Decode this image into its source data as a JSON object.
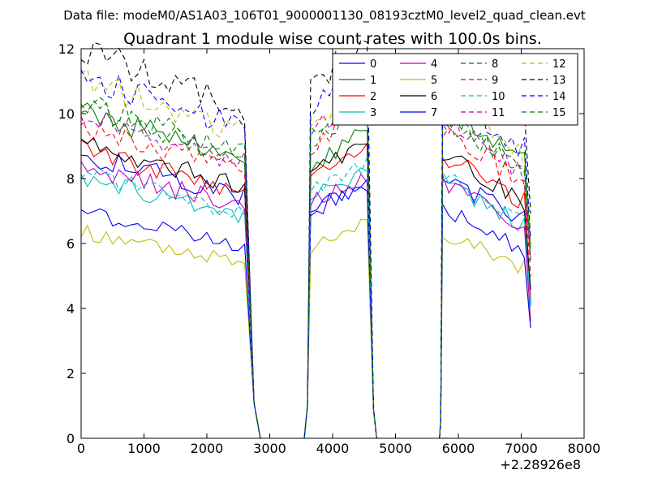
{
  "suptitle": "Data file: modeM0/AS1A03_106T01_9000001130_08193cztM0_level2_quad_clean.evt",
  "chart_data": {
    "type": "line",
    "title": "Quadrant 1 module wise count rates with 100.0s bins.",
    "xlabel": "",
    "ylabel": "",
    "x_offset_label": "+2.28926e8",
    "xlim": [
      0,
      8000
    ],
    "ylim": [
      0,
      12
    ],
    "x_ticks": [
      0,
      1000,
      2000,
      3000,
      4000,
      5000,
      6000,
      7000,
      8000
    ],
    "x_tick_labels": [
      "0",
      "1000",
      "2000",
      "3000",
      "4000",
      "5000",
      "6000",
      "7000",
      "8000"
    ],
    "y_ticks": [
      0,
      2,
      4,
      6,
      8,
      10,
      12
    ],
    "y_tick_labels": [
      "0",
      "2",
      "4",
      "6",
      "8",
      "10",
      "12"
    ],
    "grid": false,
    "legend_position": "top-right",
    "legend_columns": 4,
    "segments_x": [
      [
        0,
        2650,
        100
      ],
      [
        3650,
        4550,
        100
      ],
      [
        5750,
        7150,
        100
      ]
    ],
    "series": [
      {
        "name": "0",
        "color": "#0000ff",
        "dash": "solid",
        "levels": [
          7.3,
          7.0,
          7.0
        ]
      },
      {
        "name": "1",
        "color": "#008000",
        "dash": "solid",
        "levels": [
          8.4,
          8.5,
          8.9
        ]
      },
      {
        "name": "2",
        "color": "#ff0000",
        "dash": "solid",
        "levels": [
          7.4,
          8.2,
          7.6
        ]
      },
      {
        "name": "3",
        "color": "#00bfbf",
        "dash": "solid",
        "levels": [
          6.7,
          7.4,
          6.9
        ]
      },
      {
        "name": "4",
        "color": "#bf00bf",
        "dash": "solid",
        "levels": [
          7.0,
          7.2,
          6.8
        ]
      },
      {
        "name": "5",
        "color": "#bfbf00",
        "dash": "solid",
        "levels": [
          5.3,
          5.9,
          5.5
        ]
      },
      {
        "name": "6",
        "color": "#000000",
        "dash": "solid",
        "levels": [
          7.6,
          8.1,
          7.7
        ]
      },
      {
        "name": "7",
        "color": "#0000ff",
        "dash": "solid",
        "levels": [
          5.8,
          7.0,
          6.1
        ]
      },
      {
        "name": "8",
        "color": "#008000",
        "dash": "dashed",
        "levels": [
          8.6,
          9.2,
          8.7
        ]
      },
      {
        "name": "9",
        "color": "#ff0000",
        "dash": "dashed",
        "levels": [
          8.0,
          9.0,
          8.3
        ]
      },
      {
        "name": "10",
        "color": "#00bfbf",
        "dash": "dashed",
        "levels": [
          6.8,
          7.6,
          7.0
        ]
      },
      {
        "name": "11",
        "color": "#bf00bf",
        "dash": "dashed",
        "levels": [
          8.3,
          9.5,
          8.5
        ]
      },
      {
        "name": "12",
        "color": "#bfbf00",
        "dash": "dashed",
        "levels": [
          9.2,
          9.8,
          9.2
        ]
      },
      {
        "name": "13",
        "color": "#000000",
        "dash": "dashed",
        "levels": [
          10.0,
          10.9,
          10.1
        ]
      },
      {
        "name": "14",
        "color": "#0000ff",
        "dash": "dashed",
        "levels": [
          9.3,
          10.2,
          9.4
        ]
      },
      {
        "name": "15",
        "color": "#008000",
        "dash": "dashed",
        "levels": [
          8.5,
          9.4,
          8.6
        ]
      }
    ]
  }
}
